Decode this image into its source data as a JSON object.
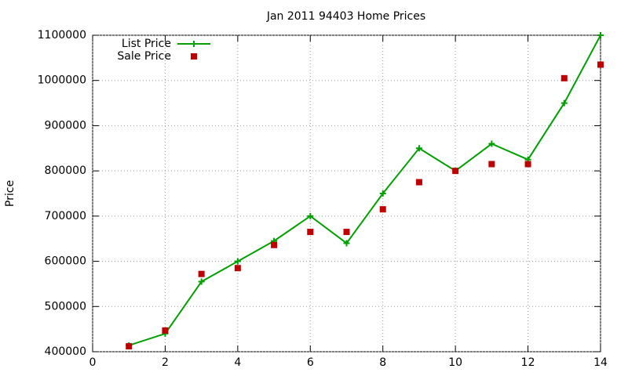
{
  "chart_data": {
    "type": "line",
    "title": "Jan 2011 94403 Home Prices",
    "y_label": "Price",
    "x": [
      1,
      2,
      3,
      4,
      5,
      6,
      7,
      8,
      9,
      10,
      11,
      12,
      13,
      14
    ],
    "series": [
      {
        "name": "List Price",
        "color": "#00a000",
        "marker": "plus",
        "line": true,
        "values": [
          414000,
          440000,
          555000,
          600000,
          645000,
          700000,
          640000,
          750000,
          850000,
          800000,
          860000,
          825000,
          950000,
          1100000
        ]
      },
      {
        "name": "Sale Price",
        "color": "#c00000",
        "marker": "square",
        "line": false,
        "values": [
          412000,
          447000,
          572000,
          585000,
          636000,
          665000,
          665000,
          715000,
          775000,
          800000,
          815000,
          815000,
          1005000,
          1035000
        ]
      }
    ],
    "xlim": [
      0,
      14
    ],
    "xticks": [
      0,
      2,
      4,
      6,
      8,
      10,
      12,
      14
    ],
    "ylim": [
      400000,
      1100000
    ],
    "yticks": [
      400000,
      500000,
      600000,
      700000,
      800000,
      900000,
      1000000,
      1100000
    ],
    "grid": true,
    "legend": "top-left"
  }
}
